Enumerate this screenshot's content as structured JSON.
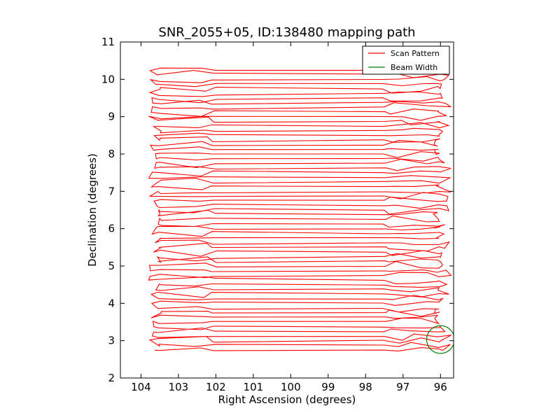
{
  "chart_data": {
    "type": "line",
    "title": "SNR_2055+05, ID:138480 mapping path",
    "xlabel": "Right Ascension (degrees)",
    "ylabel": "Declination (degrees)",
    "xlim": [
      104.55,
      95.65
    ],
    "ylim": [
      2,
      11
    ],
    "x_ticks": [
      104,
      103,
      102,
      101,
      100,
      99,
      98,
      97,
      96
    ],
    "y_ticks": [
      2,
      3,
      4,
      5,
      6,
      7,
      8,
      9,
      10,
      11
    ],
    "grid": false,
    "legend_position": "top-right",
    "colors": {
      "scan": "#ff0000",
      "beam": "#007f00"
    },
    "scan_pattern": {
      "ra_min": 95.65,
      "ra_max": 103.8,
      "dec_start": 2.75,
      "dec_end": 10.25,
      "row_spacing": 0.125,
      "dense_ra_range": [
        97.5,
        102.1
      ]
    },
    "beam": {
      "ra_center": 96.0,
      "dec_center": 3.03,
      "radius": 0.37
    },
    "series": [
      {
        "name": "Scan Pattern",
        "color": "#ff0000",
        "kind": "line"
      },
      {
        "name": "Beam Width",
        "color": "#007f00",
        "kind": "line"
      }
    ]
  }
}
